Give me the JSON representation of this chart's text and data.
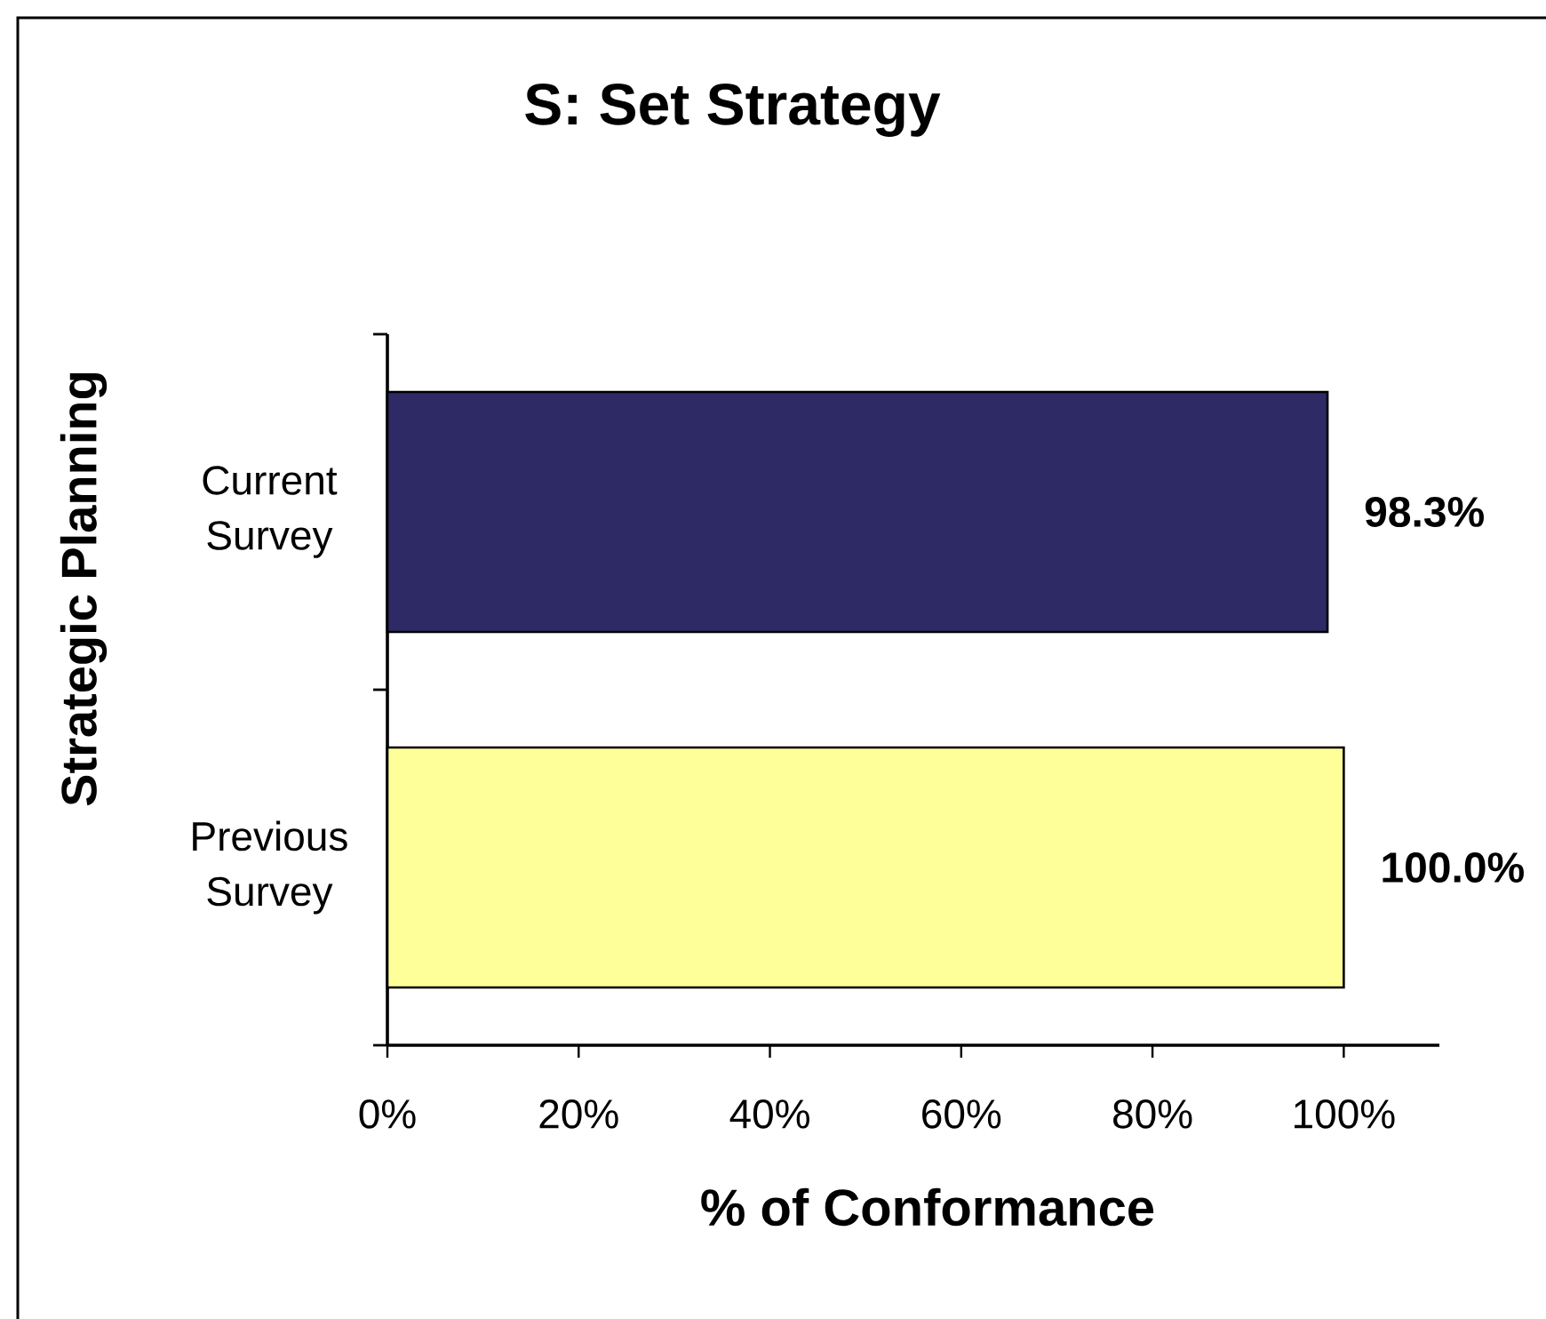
{
  "chart_data": {
    "type": "bar",
    "orientation": "horizontal",
    "title": "S: Set Strategy",
    "xlabel": "% of Conformance",
    "ylabel": "Strategic Planning",
    "categories": [
      "Current Survey",
      "Previous Survey"
    ],
    "values": [
      98.3,
      100.0
    ],
    "colors": [
      "#2e2a66",
      "#ffff99"
    ],
    "xlim": [
      0,
      110
    ],
    "xticks": [
      {
        "value": 0,
        "label": "0%"
      },
      {
        "value": 20,
        "label": "20%"
      },
      {
        "value": 40,
        "label": "40%"
      },
      {
        "value": 60,
        "label": "60%"
      },
      {
        "value": 80,
        "label": "80%"
      },
      {
        "value": 100,
        "label": "100%"
      }
    ],
    "value_labels": [
      "98.3%",
      "100.0%"
    ]
  }
}
